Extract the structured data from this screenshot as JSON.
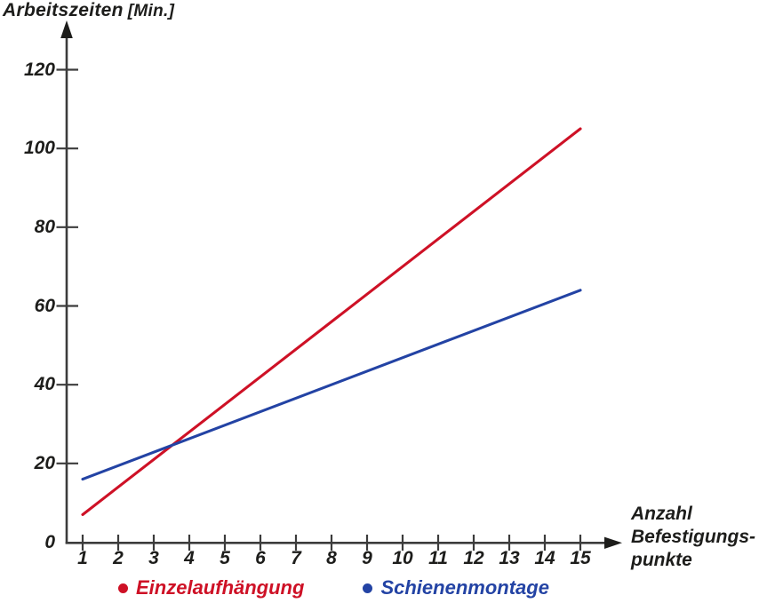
{
  "title": {
    "text": "Arbeitszeiten",
    "unit": "[Min.]"
  },
  "x_axis": {
    "label_lines": [
      "Anzahl",
      "Befestigungs-",
      "punkte"
    ],
    "tick_labels": [
      "1",
      "2",
      "3",
      "4",
      "5",
      "6",
      "7",
      "8",
      "9",
      "10",
      "11",
      "12",
      "13",
      "14",
      "15"
    ]
  },
  "y_axis": {
    "tick_labels": [
      "0",
      "20",
      "40",
      "60",
      "80",
      "100",
      "120"
    ]
  },
  "legend": {
    "items": [
      {
        "label": "Einzelaufhängung",
        "color": "#ce1126"
      },
      {
        "label": "Schienenmontage",
        "color": "#2343a4"
      }
    ]
  },
  "chart_data": {
    "type": "line",
    "title": "Arbeitszeiten [Min.]",
    "ylabel": "Arbeitszeiten [Min.]",
    "xlabel": "Anzahl Befestigungspunkte",
    "x_ticks": [
      1,
      2,
      3,
      4,
      5,
      6,
      7,
      8,
      9,
      10,
      11,
      12,
      13,
      14,
      15
    ],
    "y_ticks": [
      0,
      20,
      40,
      60,
      80,
      100,
      120
    ],
    "xlim": [
      0,
      16
    ],
    "ylim": [
      0,
      130
    ],
    "grid": false,
    "legend_position": "bottom",
    "series": [
      {
        "name": "Einzelaufhängung",
        "color": "#ce1126",
        "points": [
          [
            1,
            7
          ],
          [
            15,
            105
          ]
        ]
      },
      {
        "name": "Schienenmontage",
        "color": "#2343a4",
        "points": [
          [
            1,
            16
          ],
          [
            15,
            64
          ]
        ]
      }
    ],
    "annotations": [
      "lines intersect near x=3.5, y=24"
    ]
  }
}
